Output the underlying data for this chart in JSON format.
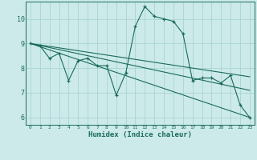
{
  "xlabel": "Humidex (Indice chaleur)",
  "ylabel": "",
  "background_color": "#cceaea",
  "grid_color": "#aad4d4",
  "line_color": "#1a6b5a",
  "xlim": [
    -0.5,
    23.5
  ],
  "ylim": [
    5.7,
    10.7
  ],
  "xticks": [
    0,
    1,
    2,
    3,
    4,
    5,
    6,
    7,
    8,
    9,
    10,
    11,
    12,
    13,
    14,
    15,
    16,
    17,
    18,
    19,
    20,
    21,
    22,
    23
  ],
  "yticks": [
    6,
    7,
    8,
    9,
    10
  ],
  "series": [
    {
      "x": [
        0,
        1,
        2,
        3,
        4,
        5,
        6,
        7,
        8,
        9,
        10,
        11,
        12,
        13,
        14,
        15,
        16,
        17,
        18,
        19,
        20,
        21,
        22,
        23
      ],
      "y": [
        9.0,
        8.9,
        8.4,
        8.6,
        7.5,
        8.3,
        8.4,
        8.1,
        8.1,
        6.9,
        7.8,
        9.7,
        10.5,
        10.1,
        10.0,
        9.9,
        9.4,
        7.5,
        7.6,
        7.6,
        7.4,
        7.7,
        6.5,
        6.0
      ]
    },
    {
      "x": [
        0,
        23
      ],
      "y": [
        9.0,
        7.65
      ]
    },
    {
      "x": [
        0,
        23
      ],
      "y": [
        9.0,
        6.0
      ]
    },
    {
      "x": [
        0,
        23
      ],
      "y": [
        9.0,
        7.1
      ]
    }
  ]
}
